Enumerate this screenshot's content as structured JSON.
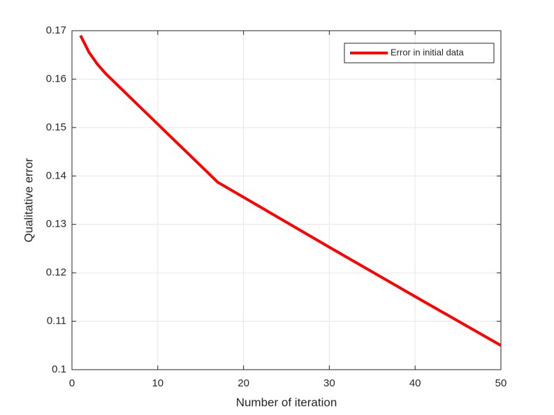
{
  "chart_data": {
    "type": "line",
    "xlabel": "Number of iteration",
    "ylabel": "Qualitative error",
    "x": [
      1,
      2,
      3,
      4,
      5,
      10,
      17,
      30,
      40,
      50
    ],
    "series": [
      {
        "name": "Error in initial data",
        "color": "#ff0000",
        "values": [
          0.169,
          0.1655,
          0.163,
          0.161,
          0.1593,
          0.1507,
          0.1387,
          0.1253,
          0.1151,
          0.105
        ]
      }
    ],
    "xlim": [
      0,
      50
    ],
    "xticks": [
      0,
      10,
      20,
      30,
      40,
      50
    ],
    "ylim": [
      0.1,
      0.17
    ],
    "yticks": [
      0.1,
      0.11,
      0.12,
      0.13,
      0.14,
      0.15,
      0.16,
      0.17
    ],
    "grid": true,
    "legend": "upper right"
  }
}
